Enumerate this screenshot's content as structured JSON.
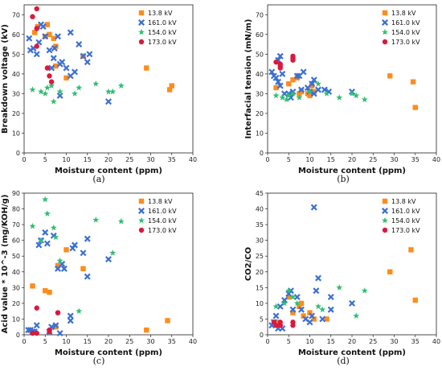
{
  "colors": {
    "13.8 kV": "#ff8c1a",
    "161.0 kV": "#3b6fd4",
    "154.0 kV": "#2fbf71",
    "173.0 kV": "#d91a3c"
  },
  "chart_data": [
    {
      "type": "scatter",
      "panel": "(a)",
      "xlabel": "Moisture content (ppm)",
      "ylabel": "Breakdown voltage (kV)",
      "xlim": [
        0,
        40
      ],
      "ylim": [
        0,
        75
      ],
      "xticks": [
        0,
        5,
        10,
        15,
        20,
        25,
        30,
        35,
        40
      ],
      "yticks": [
        0,
        10,
        20,
        30,
        40,
        50,
        60,
        70
      ],
      "legend": "top-right",
      "series": [
        {
          "name": "13.8 kV",
          "marker": "square",
          "points": [
            [
              2.5,
              61
            ],
            [
              3.2,
              64
            ],
            [
              5.0,
              59
            ],
            [
              5.5,
              65
            ],
            [
              6.0,
              60
            ],
            [
              7.5,
              44
            ],
            [
              7.5,
              54
            ],
            [
              7.0,
              58
            ],
            [
              10,
              38
            ],
            [
              14,
              49
            ],
            [
              29,
              43
            ],
            [
              34.5,
              32
            ],
            [
              35,
              34
            ]
          ]
        },
        {
          "name": "161.0 kV",
          "marker": "x",
          "points": [
            [
              1.2,
              58
            ],
            [
              1.5,
              52
            ],
            [
              2.2,
              53
            ],
            [
              3.0,
              50
            ],
            [
              3.5,
              56
            ],
            [
              4.0,
              65
            ],
            [
              4.5,
              64
            ],
            [
              5.0,
              59
            ],
            [
              6.0,
              52
            ],
            [
              6.5,
              43
            ],
            [
              7.0,
              48
            ],
            [
              7.2,
              53
            ],
            [
              8.0,
              59
            ],
            [
              8.5,
              29
            ],
            [
              8.5,
              45
            ],
            [
              9.0,
              46
            ],
            [
              10.0,
              43
            ],
            [
              11.0,
              39
            ],
            [
              11.0,
              61
            ],
            [
              12.0,
              41
            ],
            [
              13.0,
              55
            ],
            [
              14.0,
              49
            ],
            [
              15.0,
              46
            ],
            [
              15.5,
              50
            ],
            [
              20.0,
              26
            ]
          ]
        },
        {
          "name": "154.0 kV",
          "marker": "star",
          "points": [
            [
              2.0,
              32
            ],
            [
              4.0,
              31
            ],
            [
              5.0,
              30
            ],
            [
              5.5,
              33
            ],
            [
              6.5,
              34
            ],
            [
              7.0,
              26
            ],
            [
              8.5,
              31
            ],
            [
              12.0,
              30
            ],
            [
              13.0,
              33
            ],
            [
              17.0,
              35
            ],
            [
              20.0,
              31
            ],
            [
              21.0,
              31
            ],
            [
              23.0,
              34
            ]
          ]
        },
        {
          "name": "173.0 kV",
          "marker": "circle",
          "points": [
            [
              2.0,
              69
            ],
            [
              3.0,
              73
            ],
            [
              3.0,
              63
            ],
            [
              3.0,
              54
            ],
            [
              5.5,
              43
            ],
            [
              6.0,
              39
            ],
            [
              6.5,
              36
            ]
          ]
        }
      ]
    },
    {
      "type": "scatter",
      "panel": "(b)",
      "xlabel": "Moisture content (ppm)",
      "ylabel": "Interfacial tension (mN/m)",
      "xlim": [
        0,
        40
      ],
      "ylim": [
        0,
        75
      ],
      "xticks": [
        0,
        5,
        10,
        15,
        20,
        25,
        30,
        35,
        40
      ],
      "yticks": [
        0,
        10,
        20,
        30,
        40,
        50,
        60,
        70
      ],
      "legend": "top-right",
      "series": [
        {
          "name": "13.8 kV",
          "marker": "square",
          "points": [
            [
              2.0,
              33
            ],
            [
              5.0,
              35
            ],
            [
              6.0,
              37
            ],
            [
              7.0,
              38
            ],
            [
              7.5,
              30
            ],
            [
              8.0,
              31
            ],
            [
              9.5,
              30
            ],
            [
              10,
              29
            ],
            [
              10.5,
              34
            ],
            [
              11,
              31
            ],
            [
              29,
              39
            ],
            [
              34.5,
              36
            ],
            [
              35,
              23
            ]
          ]
        },
        {
          "name": "161.0 kV",
          "marker": "x",
          "points": [
            [
              1.0,
              41
            ],
            [
              1.5,
              39
            ],
            [
              2.0,
              38
            ],
            [
              2.5,
              47
            ],
            [
              2.5,
              36
            ],
            [
              3.0,
              34
            ],
            [
              3.0,
              49
            ],
            [
              3.5,
              40
            ],
            [
              4.0,
              30
            ],
            [
              5.0,
              30
            ],
            [
              5.5,
              28
            ],
            [
              6.0,
              31
            ],
            [
              7.0,
              39
            ],
            [
              7.5,
              39
            ],
            [
              8.0,
              32
            ],
            [
              8.5,
              41
            ],
            [
              9.5,
              33
            ],
            [
              10,
              31
            ],
            [
              10.5,
              35
            ],
            [
              11,
              37
            ],
            [
              11,
              30
            ],
            [
              12,
              32
            ],
            [
              13.5,
              32
            ],
            [
              14.5,
              31
            ],
            [
              20,
              31
            ]
          ]
        },
        {
          "name": "154.0 kV",
          "marker": "star",
          "points": [
            [
              2.0,
              29
            ],
            [
              3.5,
              28
            ],
            [
              4.5,
              27
            ],
            [
              5.0,
              29
            ],
            [
              6.0,
              30
            ],
            [
              7.5,
              28
            ],
            [
              10,
              31
            ],
            [
              12,
              35
            ],
            [
              14,
              30
            ],
            [
              17,
              28
            ],
            [
              20,
              30
            ],
            [
              21,
              29
            ],
            [
              23,
              27
            ]
          ]
        },
        {
          "name": "173.0 kV",
          "marker": "circle",
          "points": [
            [
              2.0,
              46
            ],
            [
              3.0,
              43
            ],
            [
              3.0,
              45
            ],
            [
              3.0,
              44
            ],
            [
              6.0,
              48
            ],
            [
              6.0,
              49
            ],
            [
              6.0,
              47
            ]
          ]
        }
      ]
    },
    {
      "type": "scatter",
      "panel": "(c)",
      "xlabel": "Moisture content (ppm)",
      "ylabel": "Acid value * 10^-3 (mg/KOH/g)",
      "xlim": [
        0,
        40
      ],
      "ylim": [
        0,
        90
      ],
      "xticks": [
        0,
        5,
        10,
        15,
        20,
        25,
        30,
        35,
        40
      ],
      "yticks": [
        0,
        10,
        20,
        30,
        40,
        50,
        60,
        70,
        80,
        90
      ],
      "legend": "top-right",
      "series": [
        {
          "name": "13.8 kV",
          "marker": "square",
          "points": [
            [
              2.0,
              31
            ],
            [
              5.0,
              28
            ],
            [
              6.0,
              27
            ],
            [
              7.5,
              5
            ],
            [
              8.0,
              44
            ],
            [
              10,
              54
            ],
            [
              14,
              42
            ],
            [
              29,
              3
            ],
            [
              34,
              9
            ]
          ]
        },
        {
          "name": "161.0 kV",
          "marker": "x",
          "points": [
            [
              1.0,
              3
            ],
            [
              1.5,
              3
            ],
            [
              2.0,
              2
            ],
            [
              2.5,
              2
            ],
            [
              3.0,
              6
            ],
            [
              3.5,
              57
            ],
            [
              4.0,
              60
            ],
            [
              5.0,
              65
            ],
            [
              5.5,
              58
            ],
            [
              6.0,
              2
            ],
            [
              6.5,
              5
            ],
            [
              7.0,
              63
            ],
            [
              7.5,
              6
            ],
            [
              8.0,
              42
            ],
            [
              8.5,
              1
            ],
            [
              9.0,
              45
            ],
            [
              9.5,
              42
            ],
            [
              11.0,
              9
            ],
            [
              11.0,
              12
            ],
            [
              11.5,
              55
            ],
            [
              12,
              57
            ],
            [
              14,
              52
            ],
            [
              15,
              61
            ],
            [
              15,
              37
            ],
            [
              20,
              48
            ]
          ]
        },
        {
          "name": "154.0 kV",
          "marker": "star",
          "points": [
            [
              2.0,
              69
            ],
            [
              4.0,
              60
            ],
            [
              5.0,
              86
            ],
            [
              5.5,
              77
            ],
            [
              7.0,
              68
            ],
            [
              7.5,
              62
            ],
            [
              8.5,
              47
            ],
            [
              13,
              15
            ],
            [
              17,
              73
            ],
            [
              21,
              52
            ],
            [
              23,
              72
            ]
          ]
        },
        {
          "name": "173.0 kV",
          "marker": "circle",
          "points": [
            [
              2.0,
              1
            ],
            [
              3.0,
              17
            ],
            [
              3.0,
              1
            ],
            [
              6.0,
              3
            ],
            [
              6.0,
              2
            ],
            [
              8.0,
              14
            ],
            [
              8.0,
              14
            ]
          ]
        }
      ]
    },
    {
      "type": "scatter",
      "panel": "(d)",
      "xlabel": "Moisture content (ppm)",
      "ylabel": "CO2/CO",
      "xlim": [
        0,
        40
      ],
      "ylim": [
        0,
        45
      ],
      "xticks": [
        0,
        5,
        10,
        15,
        20,
        25,
        30,
        35,
        40
      ],
      "yticks": [
        0,
        5,
        10,
        15,
        20,
        25,
        30,
        35,
        40,
        45
      ],
      "legend": "top-right",
      "series": [
        {
          "name": "13.8 kV",
          "marker": "square",
          "points": [
            [
              2.0,
              4
            ],
            [
              5.0,
              12
            ],
            [
              6.0,
              7
            ],
            [
              7.5,
              9
            ],
            [
              8.0,
              10
            ],
            [
              8.5,
              6
            ],
            [
              10,
              7
            ],
            [
              11,
              5
            ],
            [
              14,
              5
            ],
            [
              29,
              20
            ],
            [
              34,
              27
            ],
            [
              35,
              11
            ]
          ]
        },
        {
          "name": "161.0 kV",
          "marker": "x",
          "points": [
            [
              1.0,
              3
            ],
            [
              1.5,
              4
            ],
            [
              2.0,
              6
            ],
            [
              2.5,
              2
            ],
            [
              3.0,
              9
            ],
            [
              3.5,
              2
            ],
            [
              4.0,
              11
            ],
            [
              5.0,
              13
            ],
            [
              5.5,
              14
            ],
            [
              6.0,
              8
            ],
            [
              7.0,
              12
            ],
            [
              8.0,
              8
            ],
            [
              9.0,
              5
            ],
            [
              10,
              4
            ],
            [
              10.5,
              6
            ],
            [
              11,
              40.5
            ],
            [
              11.5,
              14
            ],
            [
              12,
              18
            ],
            [
              13,
              5
            ],
            [
              15,
              8
            ],
            [
              15,
              12
            ],
            [
              20,
              10
            ]
          ]
        },
        {
          "name": "154.0 kV",
          "marker": "star",
          "points": [
            [
              2.0,
              9
            ],
            [
              4.0,
              10
            ],
            [
              5.0,
              14
            ],
            [
              6.0,
              12
            ],
            [
              7.0,
              10
            ],
            [
              12,
              9
            ],
            [
              13,
              8
            ],
            [
              17,
              15
            ],
            [
              21,
              6
            ],
            [
              23,
              14
            ]
          ]
        },
        {
          "name": "173.0 kV",
          "marker": "circle",
          "points": [
            [
              1.5,
              4
            ],
            [
              2.0,
              3
            ],
            [
              3.0,
              3
            ],
            [
              3.0,
              4
            ],
            [
              3.0,
              3
            ],
            [
              6.0,
              3
            ],
            [
              6.0,
              4
            ]
          ]
        }
      ]
    }
  ]
}
